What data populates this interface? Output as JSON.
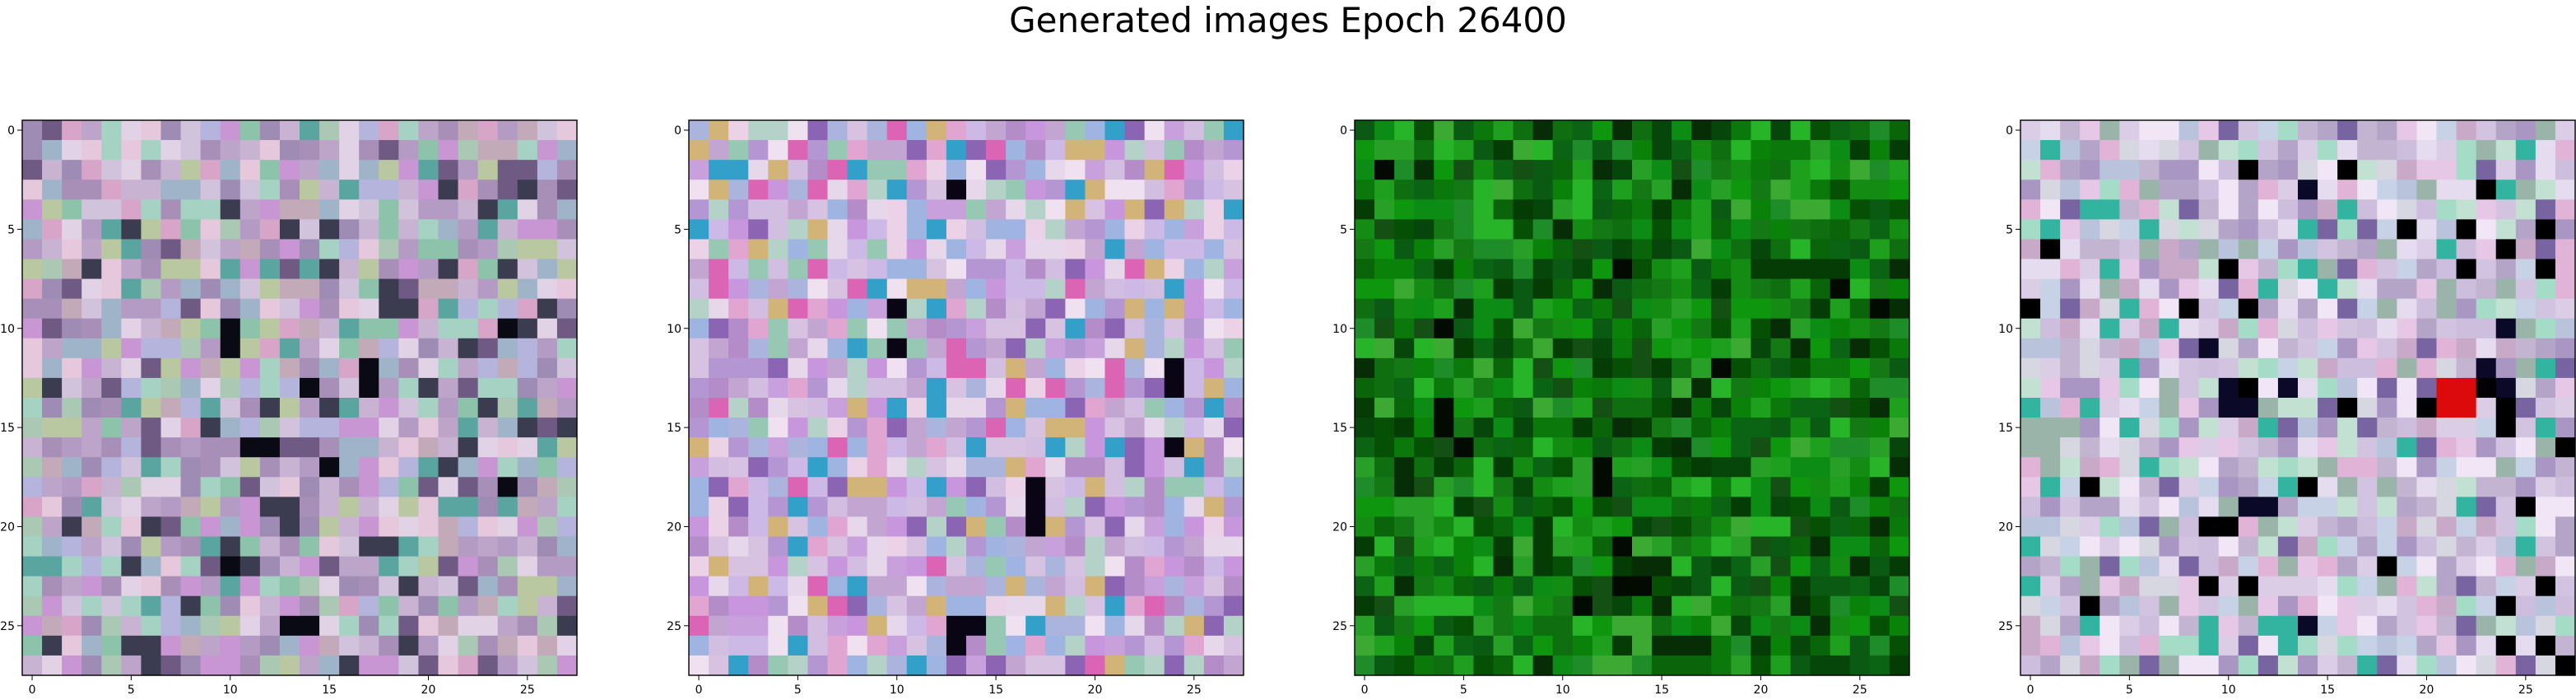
{
  "figure_title": "Generated images Epoch 26400",
  "chart_data": [
    {
      "type": "heatmap",
      "title": "",
      "xlabel": "",
      "ylabel": "",
      "grid_size": [
        28,
        28
      ],
      "xlim": [
        -0.5,
        27.5
      ],
      "ylim": [
        27.5,
        -0.5
      ],
      "xticks": [
        0,
        5,
        10,
        15,
        20,
        25
      ],
      "yticks": [
        0,
        5,
        10,
        15,
        20,
        25
      ],
      "grid": false,
      "palette": [
        "#b49bc3",
        "#c8b4d2",
        "#a88fb8",
        "#d2c3dc",
        "#9f8cb4",
        "#bca5c8",
        "#e1d2e6",
        "#8cc3aa",
        "#aac8b4",
        "#d7a5c8",
        "#c896d2",
        "#b4b4dc",
        "#9fb4c8",
        "#e6c8dc",
        "#a5d2c3",
        "#c3aab9",
        "#6e5a82",
        "#5aa5a0",
        "#3c3c50",
        "#b9c8a0"
      ],
      "dark_cells": [
        [
          10,
          10
        ],
        [
          11,
          10
        ],
        [
          12,
          17
        ],
        [
          13,
          17
        ],
        [
          16,
          11
        ],
        [
          16,
          12
        ],
        [
          18,
          24
        ],
        [
          22,
          10
        ],
        [
          25,
          13
        ],
        [
          25,
          14
        ],
        [
          10,
          24
        ],
        [
          13,
          14
        ],
        [
          17,
          15
        ]
      ],
      "dark_color": "#0a0a14",
      "seed": 17
    },
    {
      "type": "heatmap",
      "title": "",
      "xlabel": "",
      "ylabel": "",
      "grid_size": [
        28,
        28
      ],
      "xlim": [
        -0.5,
        27.5
      ],
      "ylim": [
        27.5,
        -0.5
      ],
      "xticks": [
        0,
        5,
        10,
        15,
        20,
        25
      ],
      "yticks": [
        0,
        5,
        10,
        15,
        20,
        25
      ],
      "grid": false,
      "palette": [
        "#c3a5d2",
        "#d2bee1",
        "#b48cc8",
        "#e6d7eb",
        "#aab4dc",
        "#d7c3e1",
        "#f0e1f0",
        "#96c8b4",
        "#c8a0dc",
        "#e1a5d2",
        "#b496d2",
        "#a0b4e1",
        "#cdb9e6",
        "#ebd2e6",
        "#b4d2c8",
        "#c896dc",
        "#8c64b4",
        "#32a0c8",
        "#d2b478",
        "#dc64b4"
      ],
      "dark_cells": [
        [
          3,
          13
        ],
        [
          11,
          10
        ],
        [
          12,
          24
        ],
        [
          13,
          24
        ],
        [
          18,
          17
        ],
        [
          19,
          17
        ],
        [
          20,
          17
        ],
        [
          25,
          13
        ],
        [
          25,
          14
        ],
        [
          26,
          13
        ],
        [
          16,
          24
        ],
        [
          9,
          10
        ]
      ],
      "dark_color": "#0a0514",
      "seed": 29
    },
    {
      "type": "heatmap",
      "title": "",
      "xlabel": "",
      "ylabel": "",
      "grid_size": [
        28,
        28
      ],
      "xlim": [
        -0.5,
        27.5
      ],
      "ylim": [
        27.5,
        -0.5
      ],
      "xticks": [
        0,
        5,
        10,
        15,
        20,
        25
      ],
      "yticks": [
        0,
        5,
        10,
        15,
        20,
        25
      ],
      "grid": false,
      "palette": [
        "#0a780a",
        "#0a640a",
        "#148c14",
        "#065006",
        "#1ea01e",
        "#0a5a14",
        "#147814",
        "#0f6e0f",
        "#28a028",
        "#053c05",
        "#0a820a",
        "#1e8c28",
        "#06460a",
        "#0f960f",
        "#3caa32",
        "#145014",
        "#0a6414",
        "#28b428",
        "#062d06",
        "#0c8c14"
      ],
      "dark_cells": [
        [
          2,
          1
        ],
        [
          7,
          13
        ],
        [
          10,
          4
        ],
        [
          14,
          4
        ],
        [
          15,
          4
        ],
        [
          16,
          5
        ],
        [
          17,
          12
        ],
        [
          18,
          12
        ],
        [
          21,
          13
        ],
        [
          23,
          13
        ],
        [
          23,
          14
        ],
        [
          24,
          11
        ],
        [
          12,
          18
        ],
        [
          8,
          24
        ],
        [
          9,
          26
        ]
      ],
      "dark_color": "#020a02",
      "seed": 41
    },
    {
      "type": "heatmap",
      "title": "",
      "xlabel": "",
      "ylabel": "",
      "grid_size": [
        28,
        28
      ],
      "xlim": [
        -0.5,
        27.5
      ],
      "ylim": [
        27.5,
        -0.5
      ],
      "xticks": [
        0,
        5,
        10,
        15,
        20,
        25
      ],
      "yticks": [
        0,
        5,
        10,
        15,
        20,
        25
      ],
      "grid": false,
      "palette": [
        "#d2c3e1",
        "#e6dcf0",
        "#c3b4d2",
        "#f0e6f5",
        "#b4a5c8",
        "#dccde6",
        "#a5dcc8",
        "#c8d2e6",
        "#e1b4d7",
        "#b9c3dc",
        "#d7d7e1",
        "#c3e1d2",
        "#e6c8e6",
        "#aa96c3",
        "#9bb4aa",
        "#cdbede",
        "#7864a0",
        "#32b4a0",
        "#c8aac8",
        "#ebe1ebe"
      ],
      "dark_cells": [
        [
          3,
          14
        ],
        [
          11,
          9
        ],
        [
          13,
          10
        ],
        [
          13,
          13
        ],
        [
          14,
          10
        ],
        [
          14,
          11
        ],
        [
          19,
          11
        ],
        [
          19,
          12
        ],
        [
          25,
          14
        ],
        [
          12,
          23
        ],
        [
          13,
          24
        ],
        [
          10,
          24
        ]
      ],
      "dark_color": "#0a0a28",
      "accent_cells": [
        [
          13,
          21
        ],
        [
          13,
          22
        ],
        [
          14,
          21
        ],
        [
          14,
          22
        ]
      ],
      "accent_color": "#dc0a0a",
      "seed": 53
    }
  ]
}
